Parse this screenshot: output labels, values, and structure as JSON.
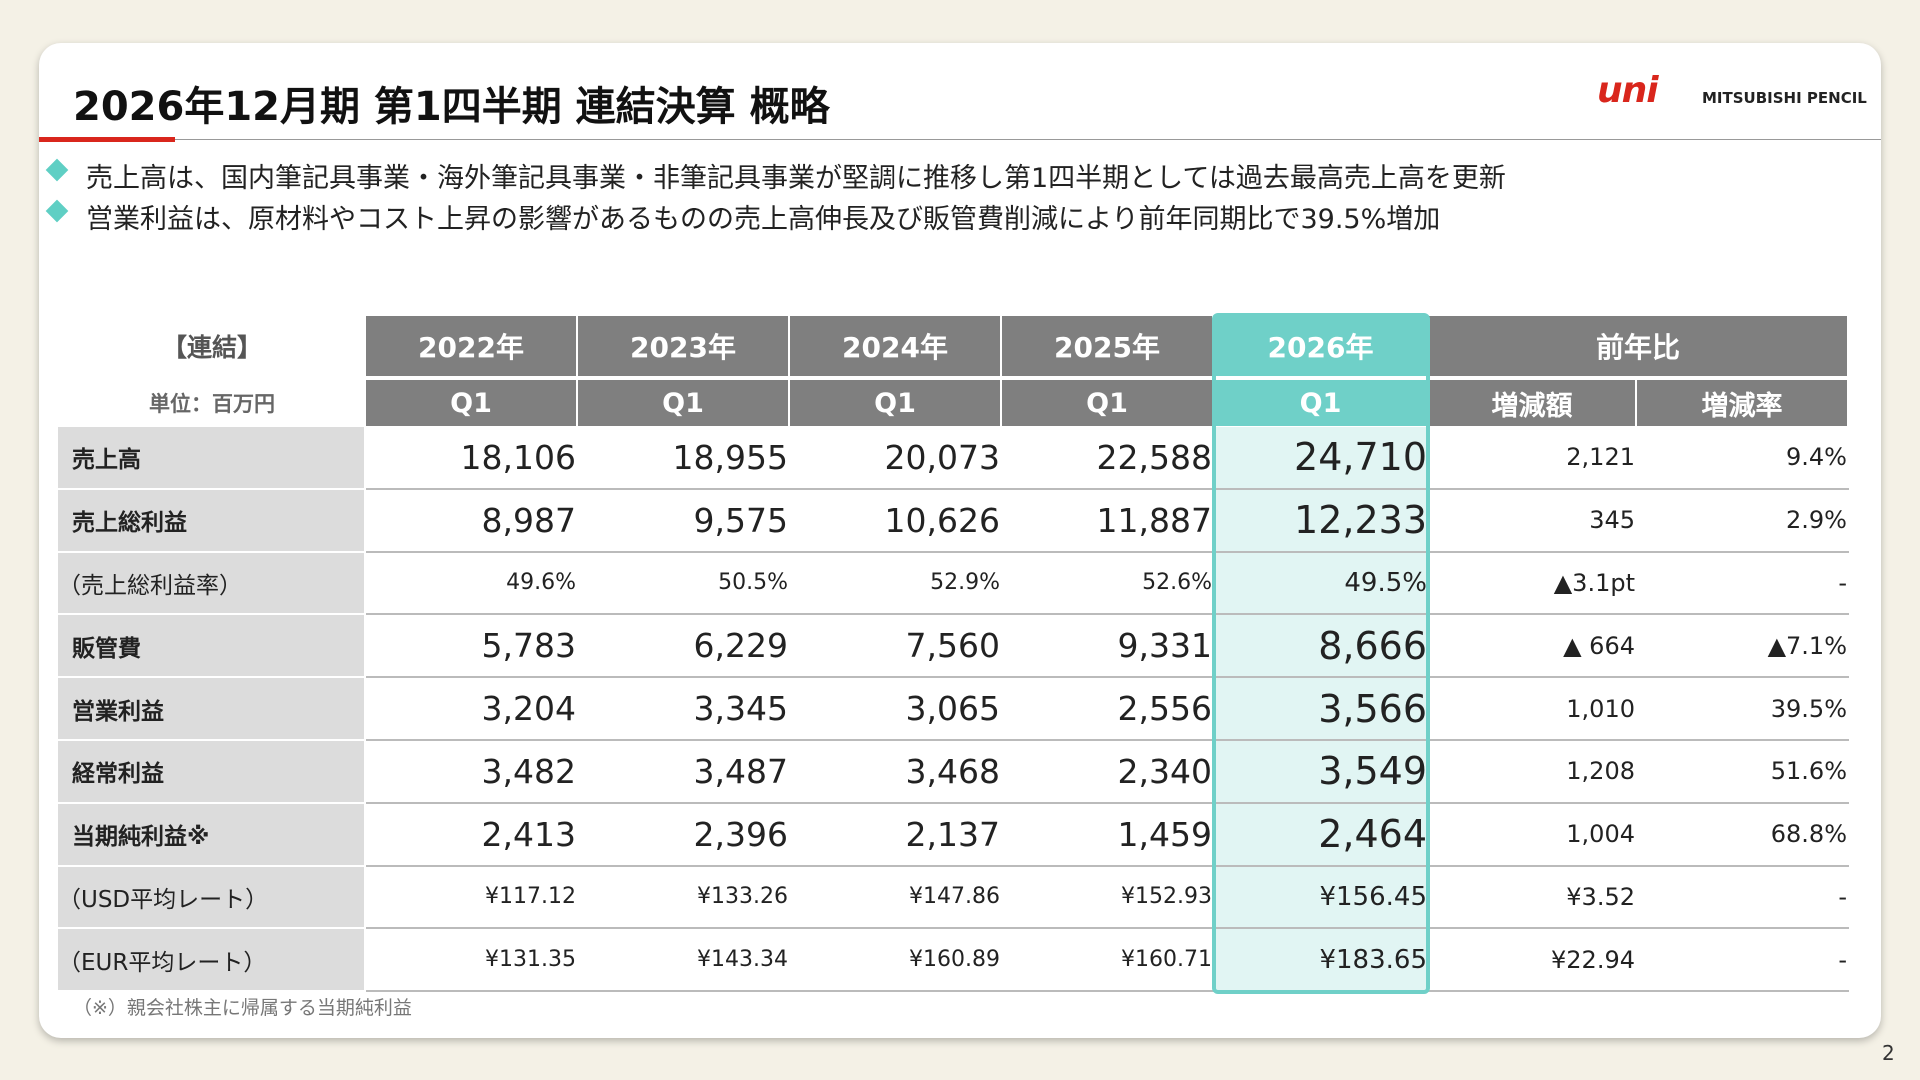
{
  "header": {
    "title": "2026年12月期 第1四半期 連結決算 概略",
    "logo": {
      "mark": "uni",
      "name": "MITSUBISHI PENCIL"
    }
  },
  "bullets": [
    "売上高は、国内筆記具事業・海外筆記具事業・非筆記具事業が堅調に推移し第1四半期としては過去最高売上高を更新",
    "営業利益は、原材料やコスト上昇の影響があるものの売上高伸長及び販管費削減により前年同期比で39.5%増加"
  ],
  "table": {
    "corner": "【連結】",
    "unit": "単位：百万円",
    "group": [
      "2022年",
      "2023年",
      "2024年",
      "2025年",
      "2026年",
      "前年比"
    ],
    "sub": [
      "Q1",
      "Q1",
      "Q1",
      "Q1",
      "Q1",
      "増減額",
      "増減率"
    ],
    "rows": [
      {
        "label": "売上高",
        "cells": [
          "18,106",
          "18,955",
          "20,073",
          "22,588",
          "24,710",
          "2,121",
          "9.4%"
        ]
      },
      {
        "label": "売上総利益",
        "cells": [
          "8,987",
          "9,575",
          "10,626",
          "11,887",
          "12,233",
          "345",
          "2.9%"
        ]
      },
      {
        "label": "（売上総利益率）",
        "cells": [
          "49.6%",
          "50.5%",
          "52.9%",
          "52.6%",
          "49.5%",
          "▲3.1pt",
          "-"
        ]
      },
      {
        "label": "販管費",
        "cells": [
          "5,783",
          "6,229",
          "7,560",
          "9,331",
          "8,666",
          "▲ 664",
          "▲7.1%"
        ]
      },
      {
        "label": "営業利益",
        "cells": [
          "3,204",
          "3,345",
          "3,065",
          "2,556",
          "3,566",
          "1,010",
          "39.5%"
        ]
      },
      {
        "label": "経常利益",
        "cells": [
          "3,482",
          "3,487",
          "3,468",
          "2,340",
          "3,549",
          "1,208",
          "51.6%"
        ]
      },
      {
        "label": "当期純利益※",
        "cells": [
          "2,413",
          "2,396",
          "2,137",
          "1,459",
          "2,464",
          "1,004",
          "68.8%"
        ]
      },
      {
        "label": "（USD平均レート）",
        "cells": [
          "¥117.12",
          "¥133.26",
          "¥147.86",
          "¥152.93",
          "¥156.45",
          "¥3.52",
          "-"
        ]
      },
      {
        "label": "（EUR平均レート）",
        "cells": [
          "¥131.35",
          "¥143.34",
          "¥160.89",
          "¥160.71",
          "¥183.65",
          "¥22.94",
          "-"
        ]
      }
    ]
  },
  "footnote": "（※）親会社株主に帰属する当期純利益",
  "page_number": "2"
}
